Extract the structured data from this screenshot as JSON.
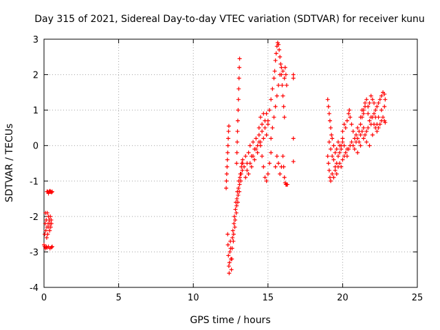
{
  "chart_data": {
    "type": "scatter",
    "title": "Day 315 of 2021, Sidereal Day-to-day VTEC variation (SDTVAR) for receiver kunu",
    "xlabel": "GPS time / hours",
    "ylabel": "SDTVAR / TECUs",
    "xlim": [
      0,
      25
    ],
    "ylim": [
      -4,
      3
    ],
    "xticks": [
      "0",
      "5",
      "10",
      "15",
      "20",
      "25"
    ],
    "yticks": [
      "-4",
      "-3",
      "-2",
      "-1",
      "0",
      "1",
      "2",
      "3"
    ],
    "grid": true,
    "marker": "+",
    "series": [
      {
        "name": "SDTVAR",
        "color": "#ff0000",
        "points": [
          [
            0.0,
            -2.8
          ],
          [
            0.05,
            -2.5
          ],
          [
            0.08,
            -2.2
          ],
          [
            0.1,
            -1.9
          ],
          [
            0.12,
            -2.4
          ],
          [
            0.15,
            -2.1
          ],
          [
            0.18,
            -2.6
          ],
          [
            0.2,
            -2.3
          ],
          [
            0.22,
            -1.9
          ],
          [
            0.25,
            -2.5
          ],
          [
            0.28,
            -2.2
          ],
          [
            0.3,
            -2.0
          ],
          [
            0.32,
            -2.3
          ],
          [
            0.35,
            -2.1
          ],
          [
            0.38,
            -2.4
          ],
          [
            0.4,
            -2.2
          ],
          [
            0.42,
            -2.0
          ],
          [
            0.45,
            -2.3
          ],
          [
            0.48,
            -2.1
          ],
          [
            0.5,
            -2.2
          ],
          [
            0.2,
            -1.3
          ],
          [
            0.25,
            -1.3
          ],
          [
            0.3,
            -1.35
          ],
          [
            0.35,
            -1.3
          ],
          [
            0.4,
            -1.28
          ],
          [
            0.45,
            -1.3
          ],
          [
            0.5,
            -1.32
          ],
          [
            0.55,
            -1.3
          ],
          [
            0.05,
            -2.85
          ],
          [
            0.1,
            -2.9
          ],
          [
            0.15,
            -2.85
          ],
          [
            0.2,
            -2.88
          ],
          [
            0.3,
            -2.85
          ],
          [
            0.4,
            -2.9
          ],
          [
            0.5,
            -2.87
          ],
          [
            0.55,
            -2.85
          ],
          [
            12.2,
            -1.2
          ],
          [
            12.22,
            -1.0
          ],
          [
            12.24,
            -0.8
          ],
          [
            12.26,
            -0.6
          ],
          [
            12.28,
            -0.4
          ],
          [
            12.3,
            -0.2
          ],
          [
            12.32,
            0.0
          ],
          [
            12.34,
            0.2
          ],
          [
            12.36,
            0.4
          ],
          [
            12.38,
            0.55
          ],
          [
            12.3,
            -2.5
          ],
          [
            12.32,
            -2.8
          ],
          [
            12.35,
            -3.1
          ],
          [
            12.38,
            -3.4
          ],
          [
            12.4,
            -3.6
          ],
          [
            12.42,
            -3.3
          ],
          [
            12.45,
            -3.0
          ],
          [
            12.48,
            -2.7
          ],
          [
            12.5,
            -2.9
          ],
          [
            12.52,
            -3.2
          ],
          [
            12.55,
            -3.5
          ],
          [
            12.58,
            -3.2
          ],
          [
            12.6,
            -2.9
          ],
          [
            12.62,
            -2.6
          ],
          [
            12.65,
            -2.4
          ],
          [
            12.68,
            -2.7
          ],
          [
            12.7,
            -2.5
          ],
          [
            12.72,
            -2.2
          ],
          [
            12.75,
            -2.0
          ],
          [
            12.78,
            -2.3
          ],
          [
            12.8,
            -2.1
          ],
          [
            12.82,
            -1.8
          ],
          [
            12.85,
            -1.6
          ],
          [
            12.88,
            -1.9
          ],
          [
            12.9,
            -1.7
          ],
          [
            12.92,
            -1.5
          ],
          [
            12.95,
            -1.3
          ],
          [
            12.98,
            -1.6
          ],
          [
            13.0,
            -1.4
          ],
          [
            13.02,
            -1.2
          ],
          [
            13.05,
            -1.0
          ],
          [
            13.08,
            -1.3
          ],
          [
            13.1,
            -1.1
          ],
          [
            13.12,
            -0.9
          ],
          [
            13.15,
            -0.8
          ],
          [
            13.18,
            -1.0
          ],
          [
            13.2,
            -0.8
          ],
          [
            13.22,
            -0.6
          ],
          [
            13.25,
            -0.5
          ],
          [
            13.28,
            -0.7
          ],
          [
            13.3,
            -0.5
          ],
          [
            12.9,
            -0.5
          ],
          [
            12.92,
            -0.2
          ],
          [
            12.94,
            0.1
          ],
          [
            12.96,
            0.4
          ],
          [
            12.98,
            0.7
          ],
          [
            13.0,
            1.0
          ],
          [
            13.02,
            1.3
          ],
          [
            13.04,
            1.6
          ],
          [
            13.06,
            1.9
          ],
          [
            13.08,
            2.2
          ],
          [
            13.1,
            2.45
          ],
          [
            13.3,
            -0.4
          ],
          [
            13.4,
            -0.6
          ],
          [
            13.5,
            -0.3
          ],
          [
            13.6,
            -0.5
          ],
          [
            13.7,
            -0.2
          ],
          [
            13.8,
            0.0
          ],
          [
            13.9,
            -0.3
          ],
          [
            14.0,
            0.1
          ],
          [
            14.1,
            -0.1
          ],
          [
            14.2,
            0.2
          ],
          [
            14.3,
            0.0
          ],
          [
            14.4,
            0.3
          ],
          [
            14.5,
            0.1
          ],
          [
            14.6,
            0.4
          ],
          [
            14.7,
            0.2
          ],
          [
            14.8,
            0.5
          ],
          [
            14.9,
            0.3
          ],
          [
            15.0,
            0.6
          ],
          [
            13.5,
            -0.9
          ],
          [
            13.6,
            -0.7
          ],
          [
            13.7,
            -0.8
          ],
          [
            13.8,
            -0.5
          ],
          [
            13.9,
            -0.6
          ],
          [
            14.0,
            -0.3
          ],
          [
            14.1,
            -0.4
          ],
          [
            14.2,
            -0.1
          ],
          [
            14.3,
            -0.2
          ],
          [
            14.4,
            0.1
          ],
          [
            14.5,
            0.0
          ],
          [
            14.6,
            -0.3
          ],
          [
            14.7,
            -0.6
          ],
          [
            14.8,
            -0.9
          ],
          [
            14.9,
            -1.0
          ],
          [
            15.0,
            -0.8
          ],
          [
            15.1,
            -0.5
          ],
          [
            15.2,
            -0.2
          ],
          [
            14.4,
            0.5
          ],
          [
            14.5,
            0.8
          ],
          [
            14.6,
            0.6
          ],
          [
            14.7,
            0.9
          ],
          [
            14.8,
            0.7
          ],
          [
            14.9,
            0.9
          ],
          [
            15.0,
            0.7
          ],
          [
            15.1,
            1.0
          ],
          [
            15.2,
            1.3
          ],
          [
            15.3,
            1.6
          ],
          [
            15.4,
            1.9
          ],
          [
            15.45,
            2.1
          ],
          [
            15.5,
            2.4
          ],
          [
            15.55,
            2.6
          ],
          [
            15.6,
            2.8
          ],
          [
            15.65,
            2.9
          ],
          [
            15.7,
            2.85
          ],
          [
            15.75,
            2.7
          ],
          [
            15.8,
            2.5
          ],
          [
            15.85,
            2.3
          ],
          [
            15.9,
            2.0
          ],
          [
            15.95,
            1.7
          ],
          [
            16.0,
            1.4
          ],
          [
            16.05,
            1.1
          ],
          [
            16.1,
            0.8
          ],
          [
            15.2,
            0.2
          ],
          [
            15.3,
            0.5
          ],
          [
            15.4,
            0.8
          ],
          [
            15.5,
            1.1
          ],
          [
            15.6,
            1.4
          ],
          [
            15.7,
            1.7
          ],
          [
            15.8,
            2.0
          ],
          [
            15.9,
            2.2
          ],
          [
            16.0,
            2.1
          ],
          [
            16.1,
            1.9
          ],
          [
            16.15,
            2.2
          ],
          [
            16.2,
            2.0
          ],
          [
            16.25,
            1.7
          ],
          [
            15.5,
            -0.6
          ],
          [
            15.6,
            -0.3
          ],
          [
            15.7,
            -0.5
          ],
          [
            15.8,
            -0.8
          ],
          [
            15.9,
            -0.6
          ],
          [
            16.0,
            -0.3
          ],
          [
            16.05,
            -0.6
          ],
          [
            16.1,
            -0.9
          ],
          [
            16.15,
            -1.05
          ],
          [
            16.2,
            -1.1
          ],
          [
            16.25,
            -1.1
          ],
          [
            16.3,
            -1.1
          ],
          [
            16.7,
            2.0
          ],
          [
            16.7,
            1.9
          ],
          [
            16.7,
            0.2
          ],
          [
            16.7,
            -0.45
          ],
          [
            19.0,
            1.3
          ],
          [
            19.05,
            1.1
          ],
          [
            19.1,
            0.9
          ],
          [
            19.15,
            0.7
          ],
          [
            19.2,
            0.5
          ],
          [
            19.25,
            0.3
          ],
          [
            19.3,
            0.2
          ],
          [
            19.4,
            0.0
          ],
          [
            19.5,
            -0.2
          ],
          [
            19.6,
            -0.1
          ],
          [
            19.7,
            0.1
          ],
          [
            19.8,
            0.0
          ],
          [
            19.9,
            -0.1
          ],
          [
            20.0,
            0.1
          ],
          [
            20.1,
            0.0
          ],
          [
            19.0,
            -0.3
          ],
          [
            19.05,
            -0.5
          ],
          [
            19.1,
            -0.7
          ],
          [
            19.15,
            -0.9
          ],
          [
            19.2,
            -1.0
          ],
          [
            19.3,
            -0.8
          ],
          [
            19.4,
            -0.9
          ],
          [
            19.5,
            -0.7
          ],
          [
            19.6,
            -0.8
          ],
          [
            19.7,
            -0.6
          ],
          [
            19.8,
            -0.5
          ],
          [
            19.9,
            -0.6
          ],
          [
            20.0,
            -0.4
          ],
          [
            20.1,
            -0.3
          ],
          [
            20.2,
            -0.2
          ],
          [
            20.3,
            -0.1
          ],
          [
            19.1,
            0.1
          ],
          [
            19.2,
            -0.1
          ],
          [
            19.3,
            -0.3
          ],
          [
            19.4,
            -0.4
          ],
          [
            19.5,
            -0.6
          ],
          [
            19.6,
            -0.5
          ],
          [
            19.7,
            -0.3
          ],
          [
            19.8,
            -0.2
          ],
          [
            19.9,
            0.0
          ],
          [
            20.0,
            0.2
          ],
          [
            20.0,
            0.4
          ],
          [
            20.1,
            0.6
          ],
          [
            20.2,
            0.5
          ],
          [
            20.3,
            0.7
          ],
          [
            20.4,
            0.9
          ],
          [
            20.45,
            1.0
          ],
          [
            20.5,
            0.8
          ],
          [
            20.6,
            0.6
          ],
          [
            20.7,
            0.4
          ],
          [
            20.8,
            0.2
          ],
          [
            20.9,
            0.3
          ],
          [
            21.0,
            0.5
          ],
          [
            21.1,
            0.4
          ],
          [
            21.2,
            0.6
          ],
          [
            21.3,
            0.8
          ],
          [
            21.4,
            1.0
          ],
          [
            21.5,
            1.2
          ],
          [
            21.6,
            1.3
          ],
          [
            21.7,
            1.1
          ],
          [
            21.8,
            1.2
          ],
          [
            21.9,
            1.4
          ],
          [
            22.0,
            1.3
          ],
          [
            22.1,
            1.2
          ],
          [
            22.2,
            1.0
          ],
          [
            22.3,
            1.1
          ],
          [
            22.4,
            1.2
          ],
          [
            22.5,
            1.3
          ],
          [
            22.6,
            1.4
          ],
          [
            22.7,
            1.5
          ],
          [
            22.8,
            1.45
          ],
          [
            22.85,
            1.3
          ],
          [
            20.3,
            -0.3
          ],
          [
            20.4,
            -0.1
          ],
          [
            20.5,
            0.0
          ],
          [
            20.6,
            0.1
          ],
          [
            20.7,
            0.0
          ],
          [
            20.8,
            -0.1
          ],
          [
            20.9,
            0.1
          ],
          [
            21.0,
            0.2
          ],
          [
            21.1,
            0.1
          ],
          [
            21.2,
            0.3
          ],
          [
            21.3,
            0.4
          ],
          [
            21.4,
            0.5
          ],
          [
            21.5,
            0.3
          ],
          [
            21.6,
            0.4
          ],
          [
            21.7,
            0.5
          ],
          [
            21.8,
            0.7
          ],
          [
            21.9,
            0.6
          ],
          [
            22.0,
            0.8
          ],
          [
            22.1,
            0.9
          ],
          [
            22.2,
            0.8
          ],
          [
            22.3,
            0.6
          ],
          [
            22.4,
            0.5
          ],
          [
            22.5,
            0.6
          ],
          [
            22.6,
            0.7
          ],
          [
            22.7,
            0.8
          ],
          [
            22.8,
            0.7
          ],
          [
            22.85,
            0.65
          ],
          [
            21.0,
            -0.2
          ],
          [
            21.2,
            0.0
          ],
          [
            21.4,
            0.2
          ],
          [
            21.6,
            0.1
          ],
          [
            21.8,
            0.0
          ],
          [
            22.0,
            0.3
          ],
          [
            22.2,
            0.5
          ],
          [
            22.4,
            0.8
          ],
          [
            22.6,
            1.0
          ],
          [
            22.8,
            1.1
          ],
          [
            21.2,
            0.8
          ],
          [
            21.3,
            1.0
          ],
          [
            21.4,
            0.9
          ],
          [
            21.5,
            1.1
          ],
          [
            21.7,
            0.9
          ],
          [
            21.9,
            0.8
          ],
          [
            22.1,
            0.6
          ],
          [
            22.3,
            0.4
          ]
        ]
      }
    ]
  }
}
